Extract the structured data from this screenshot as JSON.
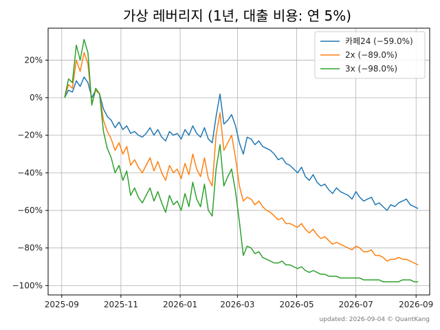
{
  "chart_data": {
    "type": "line",
    "title": "가상 레버리지 (1년, 대출 비용: 연 5%)",
    "xlabel": "",
    "ylabel": "",
    "x_ticks": [
      "2025-09",
      "2025-11",
      "2026-01",
      "2026-03",
      "2026-05",
      "2026-07",
      "2026-09"
    ],
    "x_tick_dates": [
      "2025-09-01",
      "2025-11-01",
      "2026-01-01",
      "2026-03-01",
      "2026-05-01",
      "2026-07-01",
      "2026-09-01"
    ],
    "xlim": [
      "2025-08-18",
      "2026-09-15"
    ],
    "y_ticks": [
      "20%",
      "0%",
      "−20%",
      "−40%",
      "−60%",
      "−80%",
      "−100%"
    ],
    "y_tick_values": [
      20,
      0,
      -20,
      -40,
      -60,
      -80,
      -100
    ],
    "ylim": [
      -105,
      37
    ],
    "grid": true,
    "legend_position": "top-right",
    "x": [
      "2025-09-04",
      "2025-09-08",
      "2025-09-12",
      "2025-09-16",
      "2025-09-20",
      "2025-09-24",
      "2025-09-28",
      "2025-10-02",
      "2025-10-06",
      "2025-10-10",
      "2025-10-14",
      "2025-10-18",
      "2025-10-22",
      "2025-10-26",
      "2025-10-30",
      "2025-11-03",
      "2025-11-07",
      "2025-11-11",
      "2025-11-15",
      "2025-11-19",
      "2025-11-23",
      "2025-11-27",
      "2025-12-01",
      "2025-12-05",
      "2025-12-09",
      "2025-12-13",
      "2025-12-17",
      "2025-12-21",
      "2025-12-25",
      "2025-12-29",
      "2026-01-02",
      "2026-01-06",
      "2026-01-10",
      "2026-01-14",
      "2026-01-18",
      "2026-01-22",
      "2026-01-26",
      "2026-01-30",
      "2026-02-03",
      "2026-02-07",
      "2026-02-11",
      "2026-02-15",
      "2026-02-19",
      "2026-02-23",
      "2026-02-27",
      "2026-03-03",
      "2026-03-07",
      "2026-03-11",
      "2026-03-15",
      "2026-03-19",
      "2026-03-23",
      "2026-03-27",
      "2026-03-31",
      "2026-04-04",
      "2026-04-08",
      "2026-04-12",
      "2026-04-16",
      "2026-04-20",
      "2026-04-24",
      "2026-04-28",
      "2026-05-02",
      "2026-05-06",
      "2026-05-10",
      "2026-05-14",
      "2026-05-18",
      "2026-05-22",
      "2026-05-26",
      "2026-05-30",
      "2026-06-03",
      "2026-06-07",
      "2026-06-11",
      "2026-06-15",
      "2026-06-19",
      "2026-06-23",
      "2026-06-27",
      "2026-07-01",
      "2026-07-05",
      "2026-07-09",
      "2026-07-13",
      "2026-07-17",
      "2026-07-21",
      "2026-07-25",
      "2026-07-29",
      "2026-08-02",
      "2026-08-06",
      "2026-08-10",
      "2026-08-14",
      "2026-08-18",
      "2026-08-22",
      "2026-08-26",
      "2026-08-30",
      "2026-09-03"
    ],
    "series": [
      {
        "name": "카페24 (−59.0%)",
        "color": "#1f77b4",
        "values": [
          0,
          4,
          3,
          9,
          6,
          11,
          8,
          0,
          4,
          2,
          -6,
          -10,
          -12,
          -16,
          -13,
          -17,
          -15,
          -19,
          -18,
          -20,
          -21,
          -19,
          -16,
          -20,
          -17,
          -21,
          -23,
          -18,
          -20,
          -19,
          -22,
          -17,
          -20,
          -15,
          -19,
          -21,
          -16,
          -22,
          -24,
          -10,
          2,
          -14,
          -12,
          -9,
          -15,
          -24,
          -30,
          -21,
          -22,
          -25,
          -23,
          -26,
          -27,
          -28,
          -30,
          -33,
          -32,
          -35,
          -36,
          -38,
          -40,
          -37,
          -42,
          -44,
          -41,
          -45,
          -47,
          -46,
          -49,
          -51,
          -48,
          -50,
          -51,
          -52,
          -54,
          -50,
          -53,
          -55,
          -54,
          -53,
          -57,
          -56,
          -58,
          -60,
          -57,
          -58,
          -56,
          -55,
          -54,
          -57,
          -58,
          -59
        ]
      },
      {
        "name": "2x (−89.0%)",
        "color": "#ff7f0e",
        "values": [
          0,
          7,
          5,
          20,
          14,
          24,
          18,
          -3,
          4,
          2,
          -12,
          -18,
          -22,
          -28,
          -24,
          -30,
          -26,
          -36,
          -33,
          -37,
          -40,
          -36,
          -32,
          -39,
          -34,
          -40,
          -44,
          -36,
          -40,
          -38,
          -43,
          -35,
          -41,
          -30,
          -38,
          -42,
          -32,
          -43,
          -47,
          -20,
          -8,
          -28,
          -24,
          -20,
          -32,
          -47,
          -55,
          -53,
          -54,
          -57,
          -55,
          -58,
          -60,
          -61,
          -63,
          -65,
          -64,
          -67,
          -67,
          -68,
          -69,
          -67,
          -70,
          -72,
          -70,
          -73,
          -75,
          -74,
          -76,
          -78,
          -77,
          -78,
          -79,
          -80,
          -81,
          -79,
          -80,
          -82,
          -82,
          -81,
          -84,
          -84,
          -85,
          -87,
          -86,
          -86,
          -85,
          -86,
          -86,
          -87,
          -88,
          -89
        ]
      },
      {
        "name": "3x (−98.0%)",
        "color": "#2ca02c",
        "values": [
          0,
          10,
          8,
          28,
          20,
          31,
          24,
          -4,
          5,
          2,
          -18,
          -27,
          -32,
          -40,
          -36,
          -44,
          -39,
          -52,
          -48,
          -53,
          -56,
          -52,
          -48,
          -55,
          -50,
          -56,
          -61,
          -52,
          -57,
          -55,
          -60,
          -51,
          -58,
          -45,
          -54,
          -58,
          -46,
          -60,
          -63,
          -38,
          -25,
          -47,
          -42,
          -38,
          -50,
          -66,
          -84,
          -79,
          -80,
          -83,
          -82,
          -85,
          -86,
          -87,
          -88,
          -88,
          -87,
          -89,
          -89,
          -90,
          -91,
          -90,
          -92,
          -93,
          -92,
          -93,
          -94,
          -94,
          -95,
          -95,
          -95,
          -96,
          -96,
          -96,
          -96,
          -96,
          -96,
          -97,
          -97,
          -97,
          -97,
          -97,
          -98,
          -98,
          -98,
          -98,
          -98,
          -97,
          -97,
          -97,
          -98,
          -98
        ]
      }
    ]
  },
  "footer": "updated: 2026-09-04 © QuantKang"
}
